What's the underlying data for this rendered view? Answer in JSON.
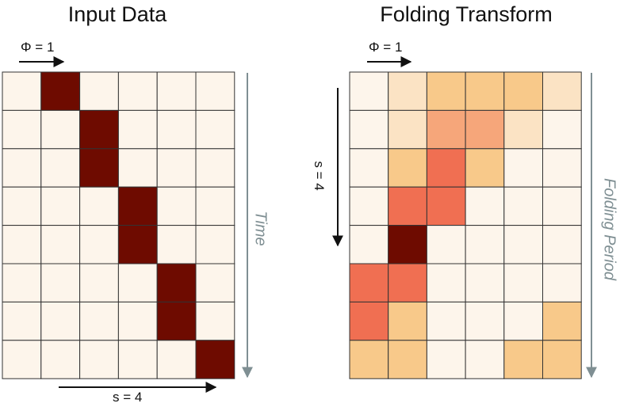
{
  "left_panel": {
    "title": "Input Data",
    "phi_label": "Φ = 1",
    "s_label": "s = 4",
    "axis_label": "Time",
    "rows": [
      [
        0,
        1,
        0,
        0,
        0,
        0
      ],
      [
        0,
        0,
        1,
        0,
        0,
        0
      ],
      [
        0,
        0,
        1,
        0,
        0,
        0
      ],
      [
        0,
        0,
        0,
        1,
        0,
        0
      ],
      [
        0,
        0,
        0,
        1,
        0,
        0
      ],
      [
        0,
        0,
        0,
        0,
        1,
        0
      ],
      [
        0,
        0,
        0,
        0,
        1,
        0
      ],
      [
        0,
        0,
        0,
        0,
        0,
        1
      ]
    ]
  },
  "right_panel": {
    "title": "Folding Transform",
    "phi_label": "Φ = 1",
    "s_label": "s = 4",
    "axis_label": "Folding Period",
    "rows": [
      [
        0.0,
        0.15,
        0.35,
        0.35,
        0.35,
        0.15
      ],
      [
        0.0,
        0.15,
        0.5,
        0.5,
        0.15,
        0.0
      ],
      [
        0.0,
        0.35,
        0.7,
        0.35,
        0.0,
        0.0
      ],
      [
        0.0,
        0.7,
        0.7,
        0.0,
        0.0,
        0.0
      ],
      [
        0.0,
        1.0,
        0.0,
        0.0,
        0.0,
        0.0
      ],
      [
        0.7,
        0.7,
        0.0,
        0.0,
        0.0,
        0.0
      ],
      [
        0.7,
        0.35,
        0.0,
        0.0,
        0.0,
        0.35
      ],
      [
        0.35,
        0.35,
        0.0,
        0.0,
        0.35,
        0.35
      ]
    ]
  },
  "colors": {
    "empty": "#fdf5eb",
    "full": "#6e0b00",
    "scale": [
      "#fdf5eb",
      "#fbe3c4",
      "#f8c98a",
      "#f6a67a",
      "#f06f52",
      "#6e0b00"
    ],
    "grid_line": "#333333",
    "axis_arrow": "#7f8f93",
    "black_arrow": "#111111"
  }
}
